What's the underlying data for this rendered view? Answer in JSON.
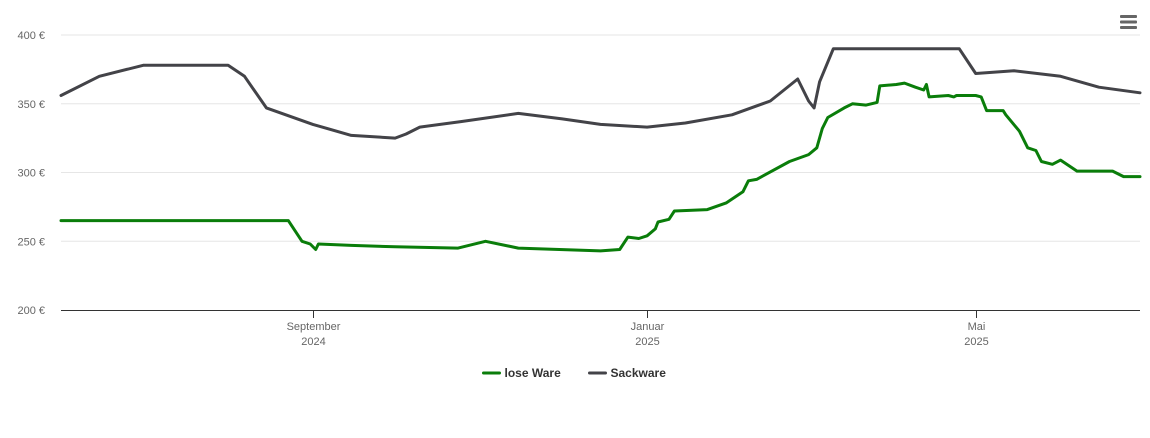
{
  "chart_data": {
    "type": "line",
    "title": "",
    "xlabel": "",
    "ylabel": "",
    "ylim": [
      200,
      400
    ],
    "yticks": [
      {
        "value": 200,
        "label": "200 €"
      },
      {
        "value": 250,
        "label": "250 €"
      },
      {
        "value": 300,
        "label": "300 €"
      },
      {
        "value": 350,
        "label": "350 €"
      },
      {
        "value": 400,
        "label": "400 €"
      }
    ],
    "xlim": [
      "2024-06-01",
      "2025-06-30"
    ],
    "xticks": [
      {
        "date": "2024-09-01",
        "month": "September",
        "year": "2024"
      },
      {
        "date": "2025-01-01",
        "month": "Januar",
        "year": "2025"
      },
      {
        "date": "2025-05-01",
        "month": "Mai",
        "year": "2025"
      }
    ],
    "grid": true,
    "legend_position": "bottom-center",
    "series": [
      {
        "name": "lose Ware",
        "color": "#0a7d0a",
        "points": [
          [
            "2024-06-01",
            265
          ],
          [
            "2024-08-23",
            265
          ],
          [
            "2024-08-28",
            250
          ],
          [
            "2024-08-31",
            248
          ],
          [
            "2024-09-02",
            244
          ],
          [
            "2024-09-03",
            248
          ],
          [
            "2024-09-15",
            247
          ],
          [
            "2024-10-01",
            246
          ],
          [
            "2024-10-24",
            245
          ],
          [
            "2024-11-03",
            250
          ],
          [
            "2024-11-15",
            245
          ],
          [
            "2024-12-15",
            243
          ],
          [
            "2024-12-22",
            244
          ],
          [
            "2024-12-25",
            253
          ],
          [
            "2024-12-29",
            252
          ],
          [
            "2025-01-01",
            254
          ],
          [
            "2025-01-04",
            259
          ],
          [
            "2025-01-05",
            264
          ],
          [
            "2025-01-09",
            266
          ],
          [
            "2025-01-11",
            272
          ],
          [
            "2025-01-23",
            273
          ],
          [
            "2025-01-30",
            278
          ],
          [
            "2025-02-05",
            286
          ],
          [
            "2025-02-07",
            294
          ],
          [
            "2025-02-10",
            295
          ],
          [
            "2025-02-22",
            308
          ],
          [
            "2025-03-01",
            313
          ],
          [
            "2025-03-04",
            318
          ],
          [
            "2025-03-06",
            332
          ],
          [
            "2025-03-08",
            340
          ],
          [
            "2025-03-14",
            347
          ],
          [
            "2025-03-17",
            350
          ],
          [
            "2025-03-22",
            349
          ],
          [
            "2025-03-26",
            351
          ],
          [
            "2025-03-27",
            363
          ],
          [
            "2025-04-02",
            364
          ],
          [
            "2025-04-05",
            365
          ],
          [
            "2025-04-09",
            362
          ],
          [
            "2025-04-12",
            360
          ],
          [
            "2025-04-13",
            364
          ],
          [
            "2025-04-14",
            355
          ],
          [
            "2025-04-21",
            356
          ],
          [
            "2025-04-23",
            355
          ],
          [
            "2025-04-24",
            356
          ],
          [
            "2025-05-01",
            356
          ],
          [
            "2025-05-03",
            355
          ],
          [
            "2025-05-05",
            345
          ],
          [
            "2025-05-11",
            345
          ],
          [
            "2025-05-12",
            342
          ],
          [
            "2025-05-17",
            330
          ],
          [
            "2025-05-20",
            318
          ],
          [
            "2025-05-23",
            316
          ],
          [
            "2025-05-25",
            308
          ],
          [
            "2025-05-29",
            306
          ],
          [
            "2025-06-01",
            309
          ],
          [
            "2025-06-04",
            305
          ],
          [
            "2025-06-07",
            301
          ],
          [
            "2025-06-20",
            301
          ],
          [
            "2025-06-24",
            297
          ],
          [
            "2025-06-30",
            297
          ]
        ]
      },
      {
        "name": "Sackware",
        "color": "#434348",
        "points": [
          [
            "2024-06-01",
            356
          ],
          [
            "2024-06-15",
            370
          ],
          [
            "2024-07-01",
            378
          ],
          [
            "2024-08-01",
            378
          ],
          [
            "2024-08-07",
            370
          ],
          [
            "2024-08-15",
            347
          ],
          [
            "2024-09-01",
            335
          ],
          [
            "2024-09-15",
            327
          ],
          [
            "2024-10-01",
            325
          ],
          [
            "2024-10-05",
            328
          ],
          [
            "2024-10-10",
            333
          ],
          [
            "2024-10-25",
            337
          ],
          [
            "2024-11-15",
            343
          ],
          [
            "2024-12-01",
            339
          ],
          [
            "2024-12-15",
            335
          ],
          [
            "2025-01-01",
            333
          ],
          [
            "2025-01-15",
            336
          ],
          [
            "2025-02-01",
            342
          ],
          [
            "2025-02-15",
            352
          ],
          [
            "2025-02-20",
            360
          ],
          [
            "2025-02-25",
            368
          ],
          [
            "2025-03-01",
            352
          ],
          [
            "2025-03-03",
            347
          ],
          [
            "2025-03-05",
            366
          ],
          [
            "2025-03-10",
            390
          ],
          [
            "2025-04-25",
            390
          ],
          [
            "2025-05-01",
            372
          ],
          [
            "2025-05-15",
            374
          ],
          [
            "2025-06-01",
            370
          ],
          [
            "2025-06-15",
            362
          ],
          [
            "2025-06-30",
            358
          ]
        ]
      }
    ]
  },
  "ui": {
    "menu_icon": "hamburger-menu-icon"
  }
}
